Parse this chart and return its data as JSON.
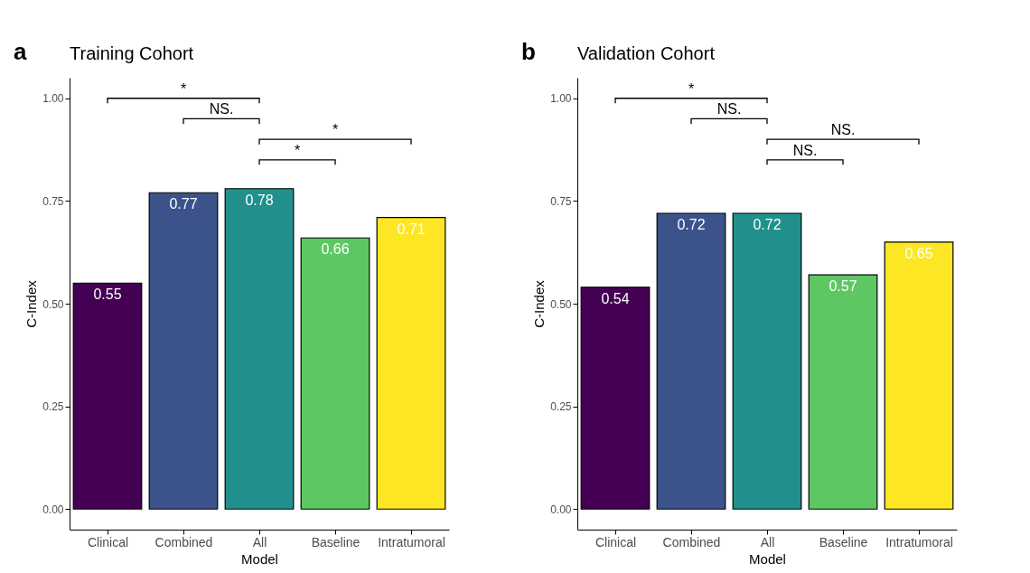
{
  "chart_data": [
    {
      "type": "bar",
      "title": "Training Cohort",
      "xlabel": "Model",
      "ylabel": "C-Index",
      "categories": [
        "Clinical",
        "Combined",
        "All",
        "Baseline",
        "Intratumoral"
      ],
      "values": [
        0.55,
        0.77,
        0.78,
        0.66,
        0.71
      ],
      "colors": [
        "#440154",
        "#3b528b",
        "#21908c",
        "#5dc863",
        "#fde725"
      ],
      "ylim": [
        -0.05,
        1.05
      ],
      "yticks": [
        {
          "value": 0,
          "label": "0.00"
        },
        {
          "value": 0.25,
          "label": "0.25"
        },
        {
          "value": 0.5,
          "label": "0.50"
        },
        {
          "value": 0.75,
          "label": "0.75"
        },
        {
          "value": 1,
          "label": "1.00"
        }
      ],
      "data_labels": true,
      "grid": false,
      "annotations": [
        "a",
        "*",
        "NS.",
        "*",
        "*"
      ]
    },
    {
      "type": "bar",
      "title": "Validation Cohort",
      "xlabel": "Model",
      "ylabel": "C-Index",
      "categories": [
        "Clinical",
        "Combined",
        "All",
        "Baseline",
        "Intratumoral"
      ],
      "values": [
        0.54,
        0.72,
        0.72,
        0.57,
        0.65
      ],
      "colors": [
        "#440154",
        "#3b528b",
        "#21908c",
        "#5dc863",
        "#fde725"
      ],
      "ylim": [
        -0.05,
        1.05
      ],
      "yticks": [
        {
          "value": 0,
          "label": "0.00"
        },
        {
          "value": 0.25,
          "label": "0.25"
        },
        {
          "value": 0.5,
          "label": "0.50"
        },
        {
          "value": 0.75,
          "label": "0.75"
        },
        {
          "value": 1,
          "label": "1.00"
        }
      ],
      "data_labels": true,
      "grid": false,
      "annotations": [
        "b",
        "*",
        "NS.",
        "NS.",
        "NS."
      ]
    }
  ]
}
